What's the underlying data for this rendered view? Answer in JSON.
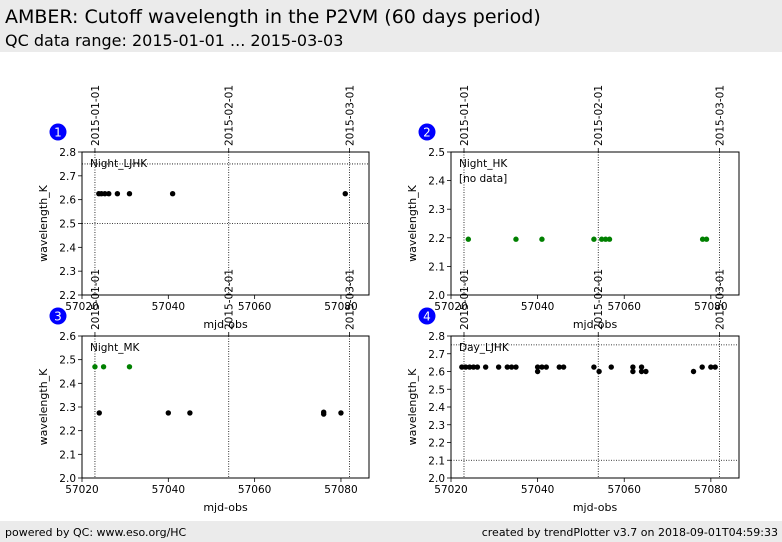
{
  "header": {
    "title": "AMBER: Cutoff wavelength in the P2VM (60 days period)",
    "subtitle": "QC data range: 2015-01-01 ... 2015-03-03"
  },
  "footer": {
    "left": "powered by QC: www.eso.org/HC",
    "right": "created by trendPlotter v3.7 on 2018-09-01T04:59:33"
  },
  "colors": {
    "series_a": "#000000",
    "series_b": "#008000",
    "badge": "#0000ff"
  },
  "chart_data": [
    {
      "type": "scatter",
      "panel": "1",
      "label": "Night_LJHK",
      "note": "",
      "xlabel": "mjd-obs",
      "ylabel": "wavelength_K",
      "xlim": [
        57020,
        57086.5
      ],
      "ylim": [
        2.2,
        2.8
      ],
      "xticks": [
        57020,
        57040,
        57060,
        57080
      ],
      "xtick_labels": [
        "57020",
        "57040",
        "57060",
        "57080"
      ],
      "yticks": [
        2.2,
        2.3,
        2.4,
        2.5,
        2.6,
        2.7,
        2.8
      ],
      "ytick_labels": [
        "2.2",
        "2.3",
        "2.4",
        "2.5",
        "2.6",
        "2.7",
        "2.8"
      ],
      "date_markers": [
        {
          "x": 57023.0,
          "label": "2015-01-01"
        },
        {
          "x": 57054.0,
          "label": "2015-02-01"
        },
        {
          "x": 57082.0,
          "label": "2015-03-01"
        }
      ],
      "hlines": [
        2.75,
        2.5
      ],
      "series": [
        {
          "color": "#000000",
          "points": [
            [
              57023.9,
              2.625
            ],
            [
              57024.5,
              2.625
            ],
            [
              57025.3,
              2.625
            ],
            [
              57026.2,
              2.625
            ],
            [
              57028.2,
              2.625
            ],
            [
              57031.0,
              2.625
            ],
            [
              57041.0,
              2.625
            ],
            [
              57081.0,
              2.625
            ]
          ]
        }
      ]
    },
    {
      "type": "scatter",
      "panel": "2",
      "label": "Night_HK",
      "note": "[no data]",
      "xlabel": "mjd-obs",
      "ylabel": "wavelength_K",
      "xlim": [
        57020,
        57086.5
      ],
      "ylim": [
        2.0,
        2.5
      ],
      "xticks": [
        57020,
        57040,
        57060,
        57080
      ],
      "xtick_labels": [
        "57020",
        "57040",
        "57060",
        "57080"
      ],
      "yticks": [
        2.0,
        2.1,
        2.2,
        2.3,
        2.4,
        2.5
      ],
      "ytick_labels": [
        "2.0",
        "2.1",
        "2.2",
        "2.3",
        "2.4",
        "2.5"
      ],
      "date_markers": [
        {
          "x": 57023.0,
          "label": "2015-01-01"
        },
        {
          "x": 57054.0,
          "label": "2015-02-01"
        },
        {
          "x": 57082.0,
          "label": "2015-03-01"
        }
      ],
      "hlines": [],
      "series": [
        {
          "color": "#008000",
          "points": [
            [
              57024.0,
              2.195
            ],
            [
              57035.0,
              2.195
            ],
            [
              57041.0,
              2.195
            ],
            [
              57053.0,
              2.195
            ],
            [
              57054.8,
              2.195
            ],
            [
              57055.7,
              2.195
            ],
            [
              57056.6,
              2.195
            ],
            [
              57078.1,
              2.195
            ],
            [
              57079.0,
              2.195
            ]
          ]
        }
      ]
    },
    {
      "type": "scatter",
      "panel": "3",
      "label": "Night_MK",
      "note": "",
      "xlabel": "mjd-obs",
      "ylabel": "wavelength_K",
      "xlim": [
        57020,
        57086.5
      ],
      "ylim": [
        2.0,
        2.6
      ],
      "xticks": [
        57020,
        57040,
        57060,
        57080
      ],
      "xtick_labels": [
        "57020",
        "57040",
        "57060",
        "57080"
      ],
      "yticks": [
        2.0,
        2.1,
        2.2,
        2.3,
        2.4,
        2.5,
        2.6
      ],
      "ytick_labels": [
        "2.0",
        "2.1",
        "2.2",
        "2.3",
        "2.4",
        "2.5",
        "2.6"
      ],
      "date_markers": [
        {
          "x": 57023.0,
          "label": "2015-01-01"
        },
        {
          "x": 57054.0,
          "label": "2015-02-01"
        },
        {
          "x": 57082.0,
          "label": "2015-03-01"
        }
      ],
      "hlines": [],
      "series": [
        {
          "color": "#000000",
          "points": [
            [
              57024.0,
              2.275
            ],
            [
              57040.0,
              2.275
            ],
            [
              57045.0,
              2.275
            ],
            [
              57076.0,
              2.27
            ],
            [
              57076.0,
              2.278
            ],
            [
              57080.0,
              2.275
            ]
          ]
        },
        {
          "color": "#008000",
          "points": [
            [
              57023.0,
              2.47
            ],
            [
              57025.0,
              2.47
            ],
            [
              57031.0,
              2.47
            ]
          ]
        }
      ]
    },
    {
      "type": "scatter",
      "panel": "4",
      "label": "Day_LJHK",
      "note": "",
      "xlabel": "mjd-obs",
      "ylabel": "wavelength_K",
      "xlim": [
        57020,
        57086.5
      ],
      "ylim": [
        2.0,
        2.8
      ],
      "xticks": [
        57020,
        57040,
        57060,
        57080
      ],
      "xtick_labels": [
        "57020",
        "57040",
        "57060",
        "57080"
      ],
      "yticks": [
        2.0,
        2.1,
        2.2,
        2.3,
        2.4,
        2.5,
        2.6,
        2.7,
        2.8
      ],
      "ytick_labels": [
        "2.0",
        "2.1",
        "2.2",
        "2.3",
        "2.4",
        "2.5",
        "2.6",
        "2.7",
        "2.8"
      ],
      "date_markers": [
        {
          "x": 57023.0,
          "label": "2015-01-01"
        },
        {
          "x": 57054.0,
          "label": "2015-02-01"
        },
        {
          "x": 57082.0,
          "label": "2015-03-01"
        }
      ],
      "hlines": [
        2.75,
        2.1
      ],
      "series": [
        {
          "color": "#000000",
          "points": [
            [
              57022.5,
              2.625
            ],
            [
              57023.4,
              2.625
            ],
            [
              57024.3,
              2.625
            ],
            [
              57025.2,
              2.625
            ],
            [
              57026.1,
              2.625
            ],
            [
              57028.0,
              2.625
            ],
            [
              57031.0,
              2.625
            ],
            [
              57033.0,
              2.625
            ],
            [
              57034.0,
              2.625
            ],
            [
              57035.0,
              2.625
            ],
            [
              57040.0,
              2.625
            ],
            [
              57040.0,
              2.6
            ],
            [
              57041.0,
              2.625
            ],
            [
              57042.0,
              2.625
            ],
            [
              57045.0,
              2.625
            ],
            [
              57046.0,
              2.625
            ],
            [
              57053.0,
              2.625
            ],
            [
              57054.2,
              2.6
            ],
            [
              57057.0,
              2.625
            ],
            [
              57062.0,
              2.625
            ],
            [
              57062.0,
              2.6
            ],
            [
              57064.0,
              2.625
            ],
            [
              57064.0,
              2.6
            ],
            [
              57065.0,
              2.6
            ],
            [
              57076.0,
              2.6
            ],
            [
              57078.0,
              2.625
            ],
            [
              57080.0,
              2.625
            ],
            [
              57081.0,
              2.625
            ]
          ]
        }
      ]
    }
  ]
}
